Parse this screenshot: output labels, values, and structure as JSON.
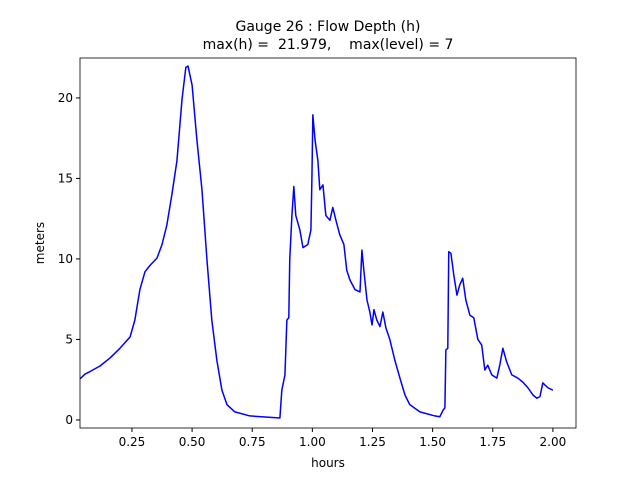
{
  "chart_data": {
    "type": "line",
    "title": "Gauge 26 : Flow Depth (h)",
    "subtitle": "max(h) =  21.979,    max(level) = 7",
    "x_label": "hours",
    "y_label": "meters",
    "xlim": [
      0.034,
      2.096
    ],
    "ylim": [
      -0.5,
      22.48
    ],
    "xticks": [
      0.25,
      {
        "value": 0.5,
        "label": "0.50"
      },
      0.75,
      {
        "value": 1,
        "label": "1.00"
      },
      1.25,
      {
        "value": 1.5,
        "label": "1.50"
      },
      1.75,
      {
        "value": 2,
        "label": "2.00"
      }
    ],
    "yticks": [
      0,
      5,
      10,
      15,
      20
    ],
    "grid": false,
    "series": [
      {
        "color": "#0000ff",
        "x": [
          0.034,
          0.055,
          0.075,
          0.117,
          0.159,
          0.2,
          0.242,
          0.262,
          0.283,
          0.304,
          0.325,
          0.354,
          0.375,
          0.395,
          0.416,
          0.437,
          0.458,
          0.474,
          0.483,
          0.5,
          0.52,
          0.541,
          0.562,
          0.582,
          0.603,
          0.624,
          0.645,
          0.678,
          0.74,
          0.865,
          0.873,
          0.886,
          0.894,
          0.902,
          0.906,
          0.915,
          0.923,
          0.931,
          0.948,
          0.961,
          0.981,
          0.994,
          0.998,
          1.002,
          1.011,
          1.023,
          1.031,
          1.044,
          1.056,
          1.073,
          1.085,
          1.098,
          1.114,
          1.131,
          1.143,
          1.156,
          1.177,
          1.198,
          1.206,
          1.214,
          1.227,
          1.239,
          1.248,
          1.256,
          1.268,
          1.281,
          1.293,
          1.306,
          1.322,
          1.343,
          1.364,
          1.385,
          1.405,
          1.447,
          1.509,
          1.53,
          1.543,
          1.551,
          1.555,
          1.563,
          1.567,
          1.576,
          1.588,
          1.601,
          1.613,
          1.625,
          1.638,
          1.655,
          1.671,
          1.688,
          1.704,
          1.717,
          1.729,
          1.746,
          1.767,
          1.779,
          1.792,
          1.808,
          1.829,
          1.854,
          1.875,
          1.896,
          1.917,
          1.933,
          1.946,
          1.958,
          1.979,
          2.0
        ],
        "values": [
          2.55,
          2.85,
          3.0,
          3.35,
          3.85,
          4.45,
          5.15,
          6.2,
          8.1,
          9.2,
          9.6,
          10.05,
          10.9,
          12.1,
          14.0,
          16.1,
          19.9,
          21.9,
          21.979,
          20.8,
          17.4,
          14.3,
          9.9,
          6.2,
          3.7,
          1.85,
          0.95,
          0.5,
          0.25,
          0.12,
          1.85,
          2.8,
          6.2,
          6.35,
          9.95,
          12.7,
          14.5,
          12.7,
          11.8,
          10.7,
          10.9,
          11.8,
          14.9,
          18.95,
          17.4,
          16.1,
          14.3,
          14.6,
          12.7,
          12.4,
          13.2,
          12.4,
          11.5,
          10.9,
          9.3,
          8.7,
          8.1,
          7.95,
          10.55,
          9.3,
          7.45,
          6.7,
          5.9,
          6.85,
          6.2,
          5.8,
          6.7,
          5.7,
          5.0,
          3.7,
          2.6,
          1.55,
          0.95,
          0.5,
          0.25,
          0.2,
          0.6,
          0.75,
          4.35,
          4.45,
          10.45,
          10.35,
          9.0,
          7.75,
          8.4,
          8.8,
          7.45,
          6.5,
          6.35,
          5.0,
          4.65,
          3.1,
          3.4,
          2.8,
          2.6,
          3.4,
          4.45,
          3.6,
          2.8,
          2.6,
          2.35,
          2.0,
          1.55,
          1.35,
          1.45,
          2.3,
          2.0,
          1.85
        ]
      }
    ]
  }
}
